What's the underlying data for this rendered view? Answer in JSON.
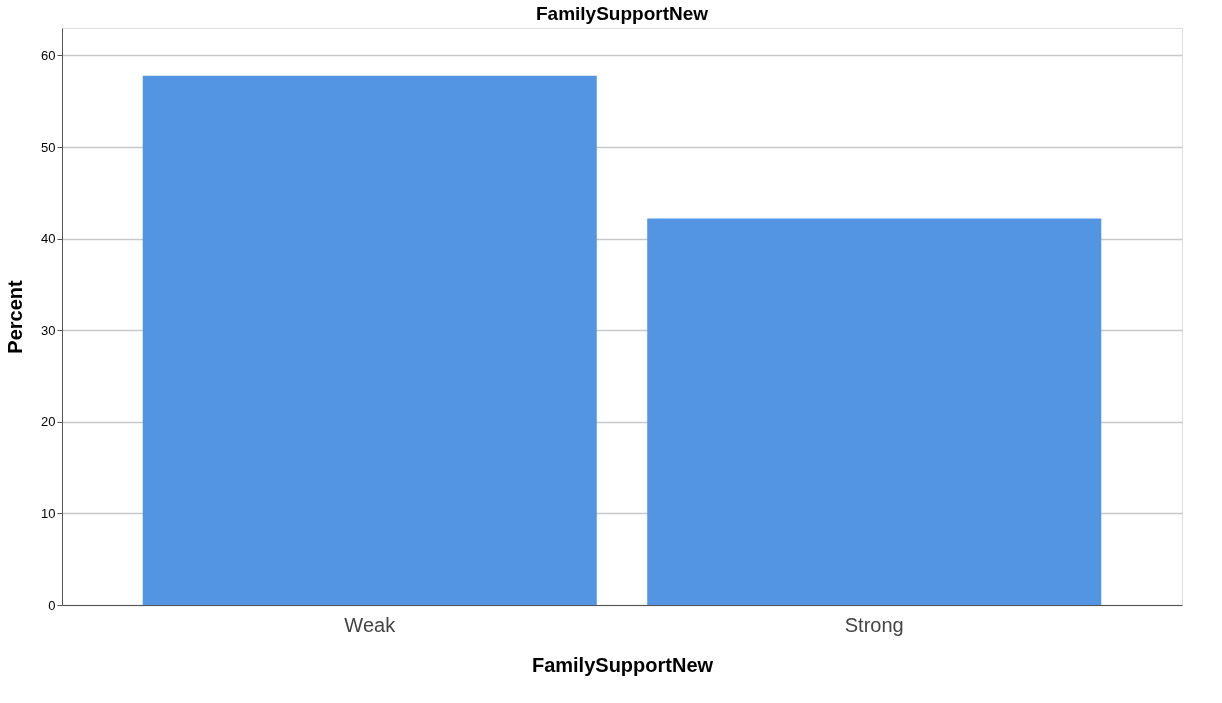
{
  "chart_data": {
    "type": "bar",
    "title": "FamilySupportNew",
    "xlabel": "FamilySupportNew",
    "ylabel": "Percent",
    "categories": [
      "Weak",
      "Strong"
    ],
    "values": [
      57.8,
      42.2
    ],
    "color": "#5495e3",
    "ylim": [
      0,
      63
    ],
    "yticks": [
      0,
      10,
      20,
      30,
      40,
      50,
      60
    ],
    "grid": "y"
  }
}
